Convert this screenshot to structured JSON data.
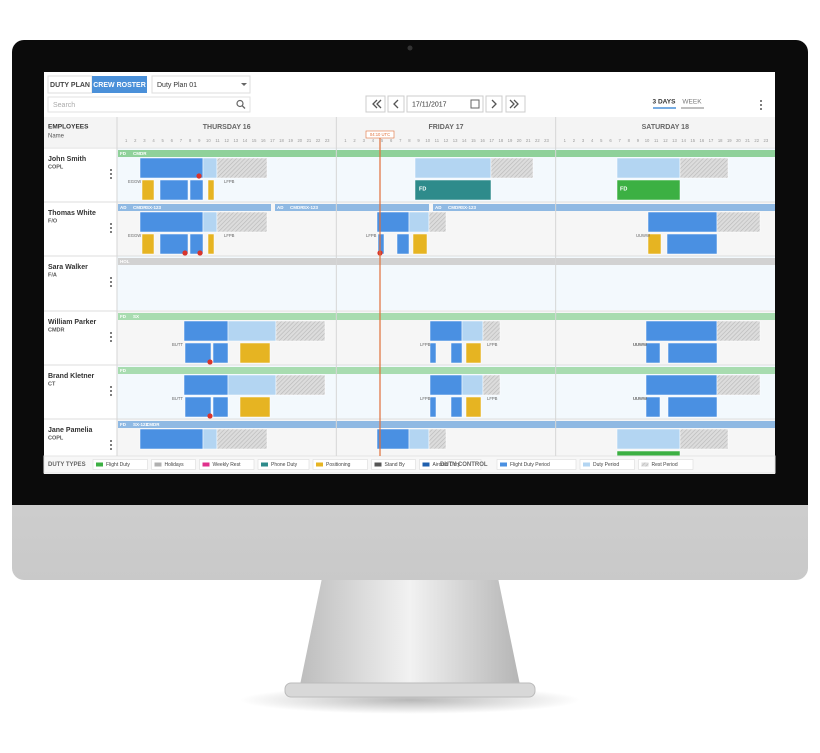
{
  "toolbar": {
    "tabs": [
      "DUTY PLAN",
      "CREW ROSTER"
    ],
    "plan": "Duty Plan 01",
    "search": "Search",
    "date": "17/11/2017",
    "views": [
      "3 DAYS",
      "WEEK"
    ]
  },
  "grid": {
    "employees_header": "EMPLOYEES",
    "name_header": "Name",
    "days": [
      "THURSDAY 16",
      "FRIDAY 17",
      "SATURDAY 18"
    ],
    "hours": [
      1,
      2,
      3,
      4,
      5,
      6,
      7,
      8,
      9,
      10,
      11,
      12,
      13,
      14,
      15,
      16,
      17,
      18,
      19,
      20,
      21,
      22,
      23
    ],
    "time_marker": "04:10 UTC"
  },
  "employees": [
    {
      "name": "John Smith",
      "role": "COPL",
      "strip": [
        [
          "FD",
          "CMDR"
        ]
      ],
      "airports": [
        "EGGW",
        "LFPB"
      ],
      "blocks": [
        "FD",
        "FD"
      ]
    },
    {
      "name": "Thomas White",
      "role": "F/O",
      "strip": [
        [
          "AD",
          "CMDR",
          "SX-123"
        ],
        [
          "AD",
          "CMDR",
          "SX-123"
        ],
        [
          "AD",
          "CMDR",
          "SX-123"
        ]
      ],
      "airports": [
        "EGGW",
        "LFPB",
        "LFPB",
        "UUWW"
      ],
      "blocks": []
    },
    {
      "name": "Sara Walker",
      "role": "F/A",
      "strip": [
        [
          "HOL"
        ]
      ],
      "airports": [],
      "blocks": []
    },
    {
      "name": "William Parker",
      "role": "CMDR",
      "strip": [
        [
          "FD",
          "SX"
        ]
      ],
      "airports": [
        "BUTT",
        "LFPB",
        "LFPB",
        "UUWW",
        "UUWW"
      ],
      "blocks": []
    },
    {
      "name": "Brand Kletner",
      "role": "CT",
      "strip": [
        [
          "FD"
        ]
      ],
      "airports": [
        "BUTT",
        "LFPB",
        "LFPB",
        "UUWW",
        "UUWW"
      ],
      "blocks": []
    },
    {
      "name": "Jane Pamelia",
      "role": "COPL",
      "strip": [
        [
          "FD",
          "SX-123",
          "CMDR"
        ]
      ],
      "airports": [],
      "blocks": []
    }
  ],
  "legend": {
    "duty_types_label": "DUTY TYPES",
    "duty_types": [
      {
        "name": "Flight Duty",
        "color": "#3cb043"
      },
      {
        "name": "Holidays",
        "color": "#b0b0b0"
      },
      {
        "name": "Weekly Rest",
        "color": "#e0318c"
      },
      {
        "name": "Phone Duty",
        "color": "#2e8b8b"
      },
      {
        "name": "Positioning",
        "color": "#e6b422"
      },
      {
        "name": "Stand By",
        "color": "#555555"
      },
      {
        "name": "Aircraft Duty",
        "color": "#1f5fae"
      }
    ],
    "duty_control_label": "DUTY CONTROL",
    "duty_control": [
      {
        "name": "Flight Duty Period",
        "color": "#4a90e2"
      },
      {
        "name": "Duty Period",
        "color": "#b3d5f2"
      },
      {
        "name": "Rest Period",
        "color": "#d0d0d0"
      }
    ]
  }
}
